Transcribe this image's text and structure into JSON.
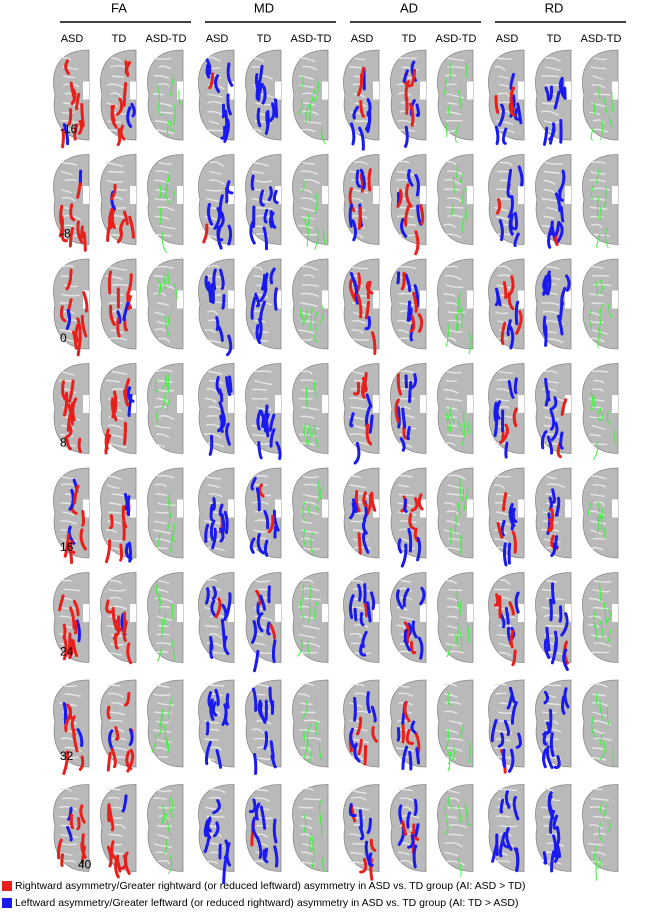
{
  "groups": [
    {
      "title": "FA",
      "columns": [
        "ASD",
        "TD",
        "ASD-TD"
      ]
    },
    {
      "title": "MD",
      "columns": [
        "ASD",
        "TD",
        "ASD-TD"
      ]
    },
    {
      "title": "AD",
      "columns": [
        "ASD",
        "TD",
        "ASD-TD"
      ]
    },
    {
      "title": "RD",
      "columns": [
        "ASD",
        "TD",
        "ASD-TD"
      ]
    }
  ],
  "slices": [
    "-16",
    "-8",
    "0",
    "8",
    "16",
    "24",
    "32",
    "40"
  ],
  "legend": [
    {
      "label": "Rightward asymmetry/Greater rightward (or reduced leftward) asymmetry in ASD vs. TD group (AI: ASD > TD)",
      "color": "#e8201c"
    },
    {
      "label": "Leftward asymmetry/Greater leftward (or reduced rightward) asymmetry in ASD vs. TD group (AI: TD > ASD)",
      "color": "#1a1aee"
    }
  ]
}
